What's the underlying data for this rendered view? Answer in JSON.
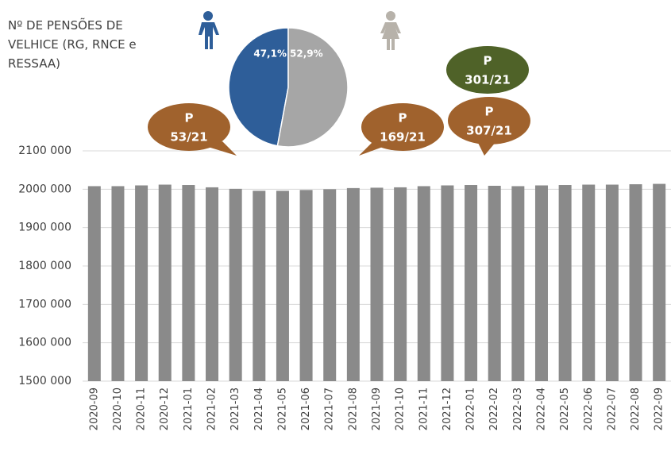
{
  "chart_data": [
    {
      "type": "bar",
      "title": "Nº DE PENSÕES DE VELHICE (RG, RNCE e RESSAA)",
      "categories": [
        "2020-09",
        "2020-10",
        "2020-11",
        "2020-12",
        "2021-01",
        "2021-02",
        "2021-03",
        "2021-04",
        "2021-05",
        "2021-06",
        "2021-07",
        "2021-08",
        "2021-09",
        "2021-10",
        "2021-11",
        "2021-12",
        "2022-01",
        "2022-02",
        "2022-03",
        "2022-04",
        "2022-05",
        "2022-06",
        "2022-07",
        "2022-08",
        "2022-09"
      ],
      "values": [
        2008000,
        2008000,
        2010000,
        2012000,
        2011000,
        2005000,
        2001000,
        1996000,
        1996000,
        1998000,
        2000000,
        2003000,
        2004000,
        2005000,
        2008000,
        2010000,
        2011000,
        2009000,
        2008000,
        2010000,
        2011000,
        2012000,
        2012000,
        2013000,
        2014000
      ],
      "color": "#8a8a8a",
      "ylim": [
        1500000,
        2100000
      ],
      "yticks": [
        {
          "value": 1500000,
          "label": "1500 000"
        },
        {
          "value": 1600000,
          "label": "1600 000"
        },
        {
          "value": 1700000,
          "label": "1700 000"
        },
        {
          "value": 1800000,
          "label": "1800 000"
        },
        {
          "value": 1900000,
          "label": "1900 000"
        },
        {
          "value": 2000000,
          "label": "2000 000"
        },
        {
          "value": 2100000,
          "label": "2100 000"
        }
      ],
      "grid": true,
      "annotations": [
        {
          "lines": [
            "P",
            "53/21"
          ],
          "color": "#a0622d"
        },
        {
          "lines": [
            "P",
            "169/21"
          ],
          "color": "#a0622d"
        },
        {
          "lines": [
            "P",
            "301/21"
          ],
          "color": "#4f6228"
        },
        {
          "lines": [
            "P",
            "307/21"
          ],
          "color": "#a0622d"
        }
      ]
    },
    {
      "type": "pie",
      "values": [
        47.1,
        52.9
      ],
      "value_labels": [
        "47,1%",
        "52,9%"
      ],
      "colors": [
        "#2e5e99",
        "#a6a6a6"
      ]
    }
  ]
}
